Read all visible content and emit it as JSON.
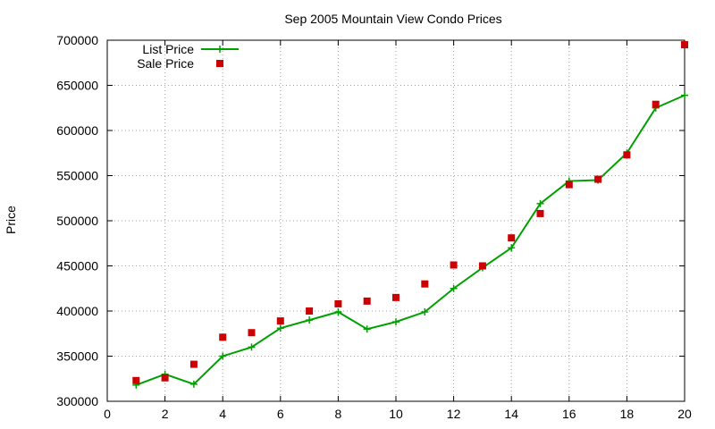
{
  "chart_data": {
    "type": "line",
    "title": "Sep 2005 Mountain View Condo Prices",
    "xlabel": "",
    "ylabel": "Price",
    "xlim": [
      0,
      20
    ],
    "ylim": [
      300000,
      700000
    ],
    "x_ticks": [
      0,
      2,
      4,
      6,
      8,
      10,
      12,
      14,
      16,
      18,
      20
    ],
    "y_ticks": [
      300000,
      350000,
      400000,
      450000,
      500000,
      550000,
      600000,
      650000,
      700000
    ],
    "grid": true,
    "legend_position": "top-left",
    "series": [
      {
        "name": "List Price",
        "style": "line-with-plus-markers",
        "color": "#00a000",
        "x": [
          1,
          2,
          3,
          4,
          5,
          6,
          7,
          8,
          9,
          10,
          11,
          12,
          13,
          14,
          15,
          16,
          17,
          18,
          19,
          20
        ],
        "values": [
          318000,
          330000,
          319000,
          350000,
          360000,
          381000,
          390000,
          399000,
          380000,
          388000,
          399000,
          425000,
          448000,
          470000,
          519000,
          544000,
          545000,
          575000,
          625000,
          639000
        ]
      },
      {
        "name": "Sale Price",
        "style": "square-markers",
        "color": "#cc0000",
        "x": [
          1,
          2,
          3,
          4,
          5,
          6,
          7,
          8,
          9,
          10,
          11,
          12,
          13,
          14,
          15,
          16,
          17,
          18,
          19,
          20
        ],
        "values": [
          323000,
          326000,
          341000,
          371000,
          376000,
          389000,
          400000,
          408000,
          411000,
          415000,
          430000,
          451000,
          450000,
          481000,
          508000,
          540000,
          546000,
          573000,
          629000,
          695000
        ]
      }
    ]
  }
}
